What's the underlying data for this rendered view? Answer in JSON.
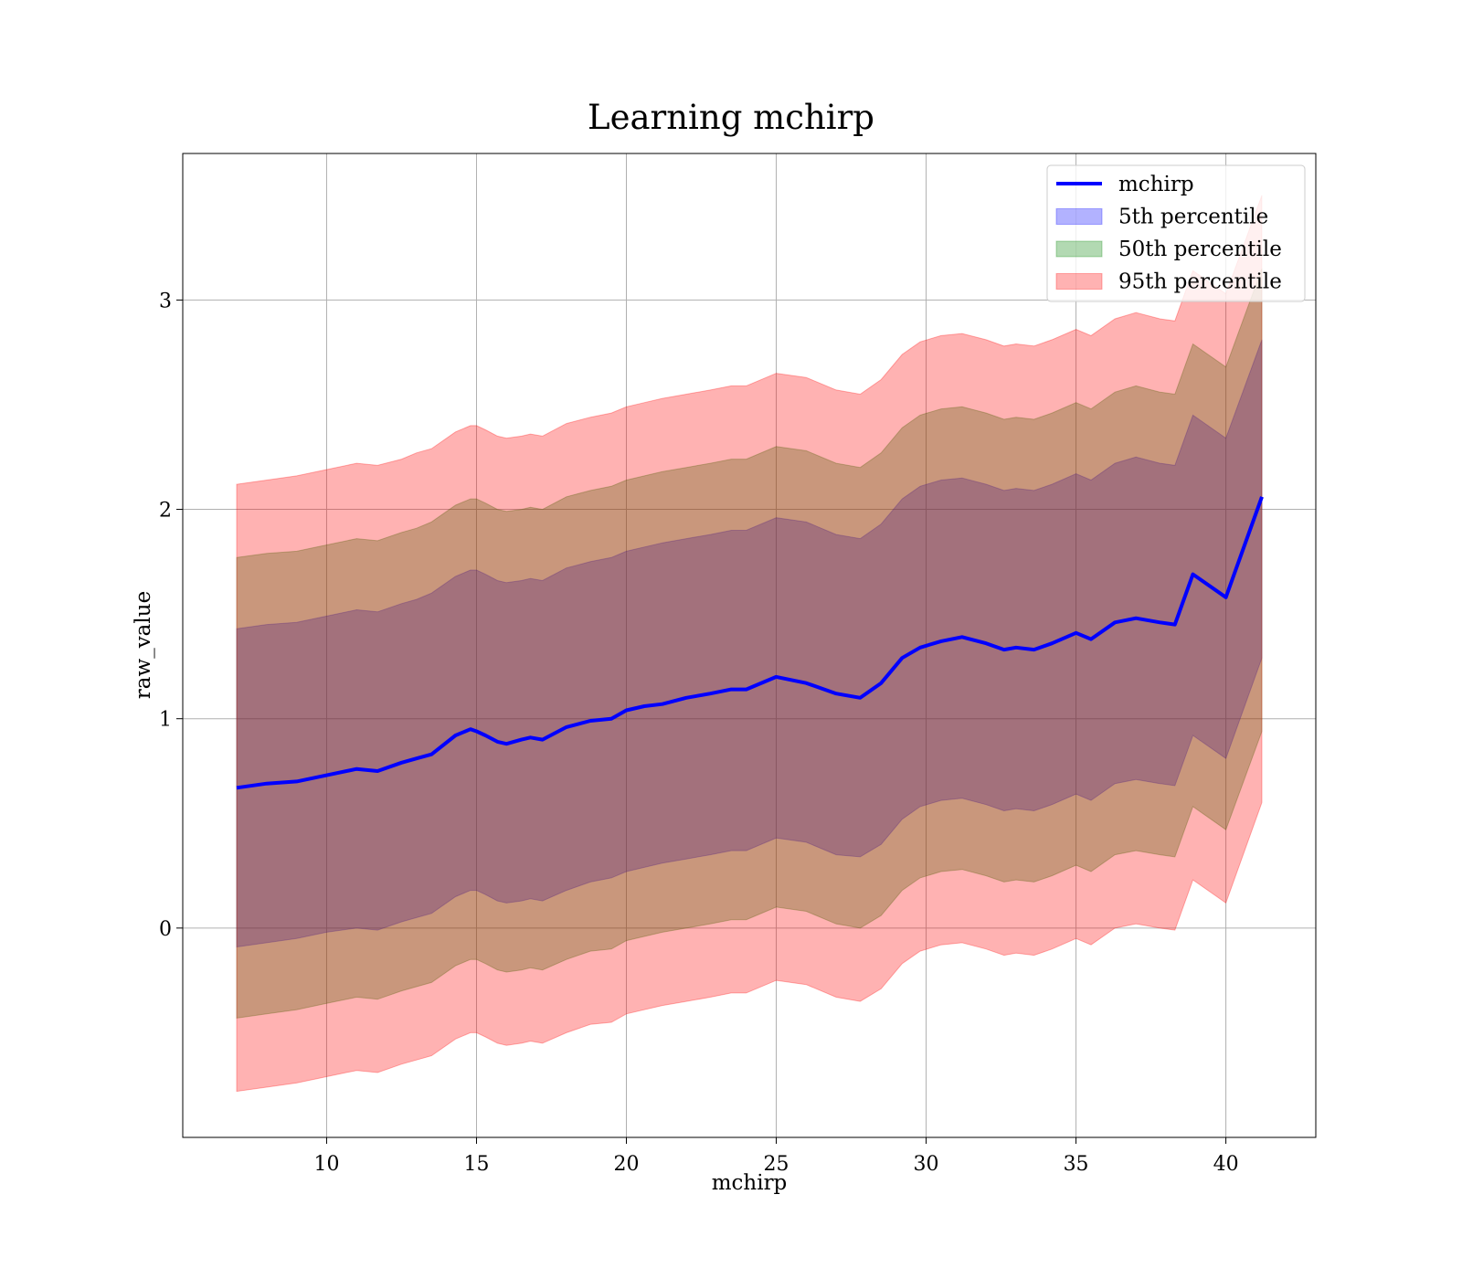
{
  "chart_data": {
    "type": "area",
    "title": "Learning mchirp",
    "xlabel": "mchirp",
    "ylabel": "raw_value",
    "xlim": [
      5.2,
      43.0
    ],
    "ylim": [
      -1.0,
      3.7
    ],
    "xticks": [
      10,
      15,
      20,
      25,
      30,
      35,
      40
    ],
    "yticks": [
      0,
      1,
      2,
      3
    ],
    "grid": true,
    "legend_position": "top-right",
    "legend": [
      {
        "label": "mchirp",
        "kind": "line",
        "color": "#0000ff"
      },
      {
        "label": "5th percentile",
        "kind": "patch",
        "color": "#0000ff"
      },
      {
        "label": "50th percentile",
        "kind": "patch",
        "color": "#008000"
      },
      {
        "label": "95th percentile",
        "kind": "patch",
        "color": "#ff0000"
      }
    ],
    "x": [
      7.0,
      8.0,
      9.0,
      10.0,
      11.0,
      11.7,
      12.5,
      13.0,
      13.5,
      14.3,
      14.8,
      15.0,
      15.3,
      15.7,
      16.0,
      16.5,
      16.8,
      17.2,
      18.0,
      18.8,
      19.5,
      20.0,
      20.6,
      21.2,
      22.0,
      22.8,
      23.5,
      24.0,
      25.0,
      26.0,
      27.0,
      27.8,
      28.5,
      29.2,
      29.8,
      30.5,
      31.2,
      32.0,
      32.6,
      33.0,
      33.6,
      34.2,
      35.0,
      35.5,
      36.3,
      37.0,
      37.8,
      38.3,
      38.9,
      40.0,
      41.2
    ],
    "series": [
      {
        "name": "mchirp",
        "role": "line",
        "color": "#0000ff",
        "values": [
          0.67,
          0.69,
          0.7,
          0.73,
          0.76,
          0.75,
          0.79,
          0.81,
          0.83,
          0.92,
          0.95,
          0.94,
          0.92,
          0.89,
          0.88,
          0.9,
          0.91,
          0.9,
          0.96,
          0.99,
          1.0,
          1.04,
          1.06,
          1.07,
          1.1,
          1.12,
          1.14,
          1.14,
          1.2,
          1.17,
          1.12,
          1.1,
          1.17,
          1.29,
          1.34,
          1.37,
          1.39,
          1.36,
          1.33,
          1.34,
          1.33,
          1.36,
          1.41,
          1.38,
          1.46,
          1.48,
          1.46,
          1.45,
          1.69,
          1.58,
          2.06
        ]
      },
      {
        "name": "5th percentile",
        "role": "band",
        "color": "#0000ff",
        "lower": [
          -0.09,
          -0.07,
          -0.05,
          -0.02,
          0.0,
          -0.01,
          0.03,
          0.05,
          0.07,
          0.15,
          0.18,
          0.18,
          0.16,
          0.13,
          0.12,
          0.13,
          0.14,
          0.13,
          0.18,
          0.22,
          0.24,
          0.27,
          0.29,
          0.31,
          0.33,
          0.35,
          0.37,
          0.37,
          0.43,
          0.41,
          0.35,
          0.34,
          0.4,
          0.52,
          0.58,
          0.61,
          0.62,
          0.59,
          0.56,
          0.57,
          0.56,
          0.59,
          0.64,
          0.61,
          0.69,
          0.71,
          0.69,
          0.68,
          0.92,
          0.81,
          1.29
        ],
        "upper": [
          1.43,
          1.45,
          1.46,
          1.49,
          1.52,
          1.51,
          1.55,
          1.57,
          1.6,
          1.68,
          1.71,
          1.71,
          1.69,
          1.66,
          1.65,
          1.66,
          1.67,
          1.66,
          1.72,
          1.75,
          1.77,
          1.8,
          1.82,
          1.84,
          1.86,
          1.88,
          1.9,
          1.9,
          1.96,
          1.94,
          1.88,
          1.86,
          1.93,
          2.05,
          2.11,
          2.14,
          2.15,
          2.12,
          2.09,
          2.1,
          2.09,
          2.12,
          2.17,
          2.14,
          2.22,
          2.25,
          2.22,
          2.21,
          2.45,
          2.34,
          2.81
        ]
      },
      {
        "name": "50th percentile",
        "role": "band",
        "color": "#008000",
        "lower": [
          -0.43,
          -0.41,
          -0.39,
          -0.36,
          -0.33,
          -0.34,
          -0.3,
          -0.28,
          -0.26,
          -0.18,
          -0.15,
          -0.15,
          -0.17,
          -0.2,
          -0.21,
          -0.2,
          -0.19,
          -0.2,
          -0.15,
          -0.11,
          -0.1,
          -0.06,
          -0.04,
          -0.02,
          0.0,
          0.02,
          0.04,
          0.04,
          0.1,
          0.08,
          0.02,
          0.0,
          0.06,
          0.18,
          0.24,
          0.27,
          0.28,
          0.25,
          0.22,
          0.23,
          0.22,
          0.25,
          0.3,
          0.27,
          0.35,
          0.37,
          0.35,
          0.34,
          0.58,
          0.47,
          0.94
        ],
        "upper": [
          1.77,
          1.79,
          1.8,
          1.83,
          1.86,
          1.85,
          1.89,
          1.91,
          1.94,
          2.02,
          2.05,
          2.05,
          2.03,
          2.0,
          1.99,
          2.0,
          2.01,
          2.0,
          2.06,
          2.09,
          2.11,
          2.14,
          2.16,
          2.18,
          2.2,
          2.22,
          2.24,
          2.24,
          2.3,
          2.28,
          2.22,
          2.2,
          2.27,
          2.39,
          2.45,
          2.48,
          2.49,
          2.46,
          2.43,
          2.44,
          2.43,
          2.46,
          2.51,
          2.48,
          2.56,
          2.59,
          2.56,
          2.55,
          2.79,
          2.68,
          3.15
        ]
      },
      {
        "name": "95th percentile",
        "role": "band",
        "color": "#ff0000",
        "lower": [
          -0.78,
          -0.76,
          -0.74,
          -0.71,
          -0.68,
          -0.69,
          -0.65,
          -0.63,
          -0.61,
          -0.53,
          -0.5,
          -0.5,
          -0.52,
          -0.55,
          -0.56,
          -0.55,
          -0.54,
          -0.55,
          -0.5,
          -0.46,
          -0.45,
          -0.41,
          -0.39,
          -0.37,
          -0.35,
          -0.33,
          -0.31,
          -0.31,
          -0.25,
          -0.27,
          -0.33,
          -0.35,
          -0.29,
          -0.17,
          -0.11,
          -0.08,
          -0.07,
          -0.1,
          -0.13,
          -0.12,
          -0.13,
          -0.1,
          -0.05,
          -0.08,
          0.0,
          0.02,
          0.0,
          -0.01,
          0.23,
          0.12,
          0.6
        ],
        "upper": [
          2.12,
          2.14,
          2.16,
          2.19,
          2.22,
          2.21,
          2.24,
          2.27,
          2.29,
          2.37,
          2.4,
          2.4,
          2.38,
          2.35,
          2.34,
          2.35,
          2.36,
          2.35,
          2.41,
          2.44,
          2.46,
          2.49,
          2.51,
          2.53,
          2.55,
          2.57,
          2.59,
          2.59,
          2.65,
          2.63,
          2.57,
          2.55,
          2.62,
          2.74,
          2.8,
          2.83,
          2.84,
          2.81,
          2.78,
          2.79,
          2.78,
          2.81,
          2.86,
          2.83,
          2.91,
          2.94,
          2.91,
          2.9,
          3.14,
          3.03,
          3.5
        ]
      }
    ]
  }
}
